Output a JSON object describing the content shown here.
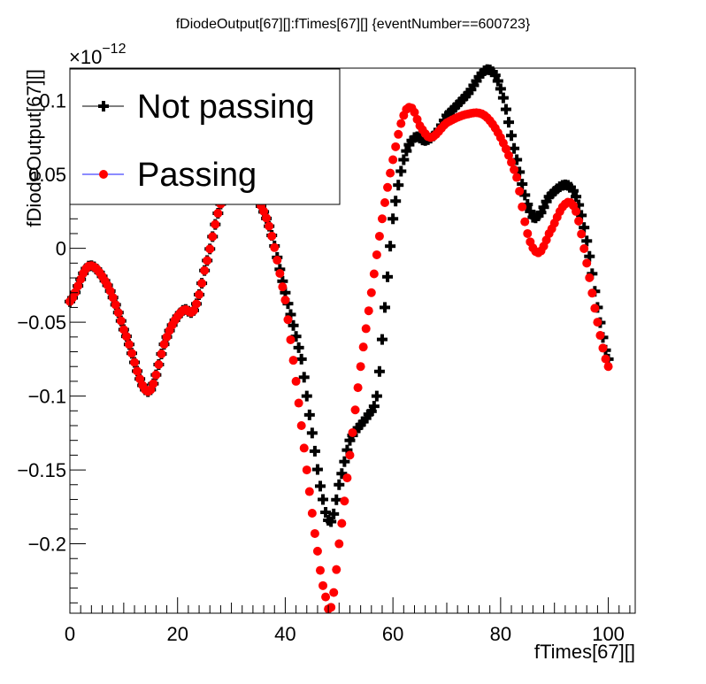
{
  "chart_data": {
    "type": "scatter",
    "title": "fDiodeOutput[67][]:fTimes[67][] {eventNumber==600723}",
    "xlabel": "fTimes[67][]",
    "ylabel": "fDiodeOutput[67][]",
    "y_exponent_base": "×10",
    "y_exponent_power": "−12",
    "xlim": [
      0,
      105
    ],
    "ylim": [
      -0.247,
      0.122
    ],
    "x_ticks": [
      0,
      20,
      40,
      60,
      80,
      100
    ],
    "x_tick_labels": [
      "0",
      "20",
      "40",
      "60",
      "80",
      "100"
    ],
    "y_ticks": [
      -0.2,
      -0.15,
      -0.1,
      -0.05,
      0,
      0.05,
      0.1
    ],
    "y_tick_labels": [
      "−0.2",
      "−0.15",
      "−0.1",
      "−0.05",
      "0",
      "0.05",
      "0.1"
    ],
    "grid": false,
    "legend_position": "top-left",
    "series": [
      {
        "name": "Not passing",
        "color": "#000000",
        "marker": "cross",
        "x": [
          0,
          3.5,
          7,
          10,
          14.5,
          18,
          21,
          23,
          25,
          28,
          31,
          34,
          37,
          40,
          43,
          45,
          47,
          48.5,
          50,
          52,
          55,
          57,
          58.5,
          60,
          62,
          64,
          66,
          68,
          70,
          74,
          77.5,
          80,
          83,
          85.5,
          87,
          89,
          92,
          94,
          96,
          98,
          100
        ],
        "y": [
          -0.036,
          -0.012,
          -0.025,
          -0.055,
          -0.097,
          -0.06,
          -0.042,
          -0.042,
          -0.015,
          0.03,
          0.05,
          0.038,
          0.015,
          -0.03,
          -0.075,
          -0.125,
          -0.17,
          -0.185,
          -0.16,
          -0.13,
          -0.115,
          -0.1,
          -0.04,
          0.02,
          0.06,
          0.075,
          0.073,
          0.078,
          0.09,
          0.105,
          0.121,
          0.108,
          0.06,
          0.025,
          0.022,
          0.035,
          0.043,
          0.035,
          0.005,
          -0.04,
          -0.075
        ]
      },
      {
        "name": "Passing",
        "color": "#ff0000",
        "marker": "circle",
        "x": [
          0,
          3.5,
          7,
          10,
          14.5,
          18,
          21,
          23,
          25,
          28,
          31,
          34,
          37,
          40,
          42,
          44,
          46,
          47.5,
          48.5,
          50,
          52,
          54,
          56,
          58,
          60,
          62,
          63.5,
          65,
          67,
          70,
          74,
          77,
          80,
          83,
          85,
          87,
          89,
          92,
          94,
          96,
          98,
          100
        ],
        "y": [
          -0.036,
          -0.012,
          -0.025,
          -0.055,
          -0.097,
          -0.06,
          -0.042,
          -0.042,
          -0.015,
          0.03,
          0.05,
          0.038,
          0.015,
          -0.035,
          -0.09,
          -0.15,
          -0.205,
          -0.236,
          -0.243,
          -0.2,
          -0.14,
          -0.08,
          -0.03,
          0.02,
          0.06,
          0.09,
          0.095,
          0.083,
          0.075,
          0.085,
          0.091,
          0.09,
          0.075,
          0.048,
          0.01,
          -0.003,
          0.01,
          0.03,
          0.025,
          -0.01,
          -0.05,
          -0.08
        ]
      }
    ]
  }
}
